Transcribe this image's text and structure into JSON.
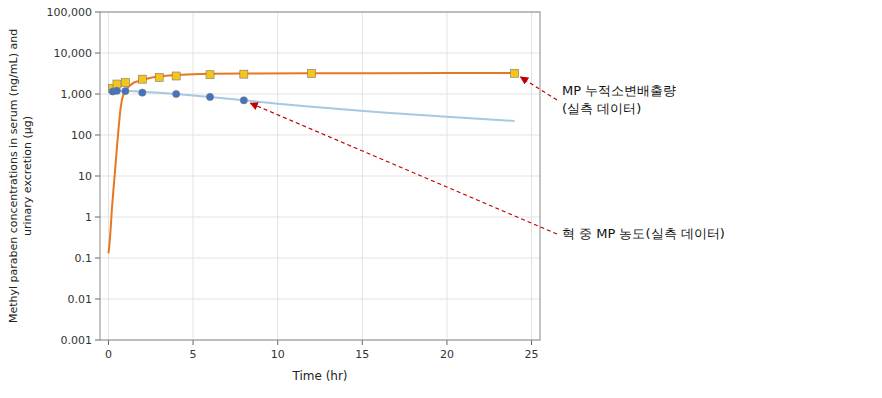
{
  "chart_data": {
    "type": "line",
    "xlabel": "Time (hr)",
    "ylabel": "Methyl paraben concentrations in serum (ng/mL) and\nurinary excretion (μg)",
    "log": "y",
    "grid": true,
    "xlim": [
      -0.5,
      25.5
    ],
    "xticks": [
      0,
      5,
      10,
      15,
      20,
      25
    ],
    "ylim": [
      0.001,
      100000
    ],
    "yticks": [
      0.001,
      0.01,
      0.1,
      1,
      10,
      100,
      {
        "value": 1000,
        "label": "1,000"
      },
      {
        "value": 10000,
        "label": "10,000"
      },
      {
        "value": 100000,
        "label": "100,000"
      }
    ],
    "series": [
      {
        "type": "line",
        "color": "#E87722",
        "x": [
          0.0,
          0.05,
          0.1,
          0.15,
          0.2,
          0.3,
          0.4,
          0.5,
          0.6,
          0.7,
          0.8,
          0.9,
          1.0,
          1.25,
          1.5,
          2.0,
          2.5,
          3.0,
          4.0,
          5.0,
          6.0,
          8.0,
          12.0,
          16.0,
          20.0,
          24.0
        ],
        "values": [
          0.13,
          0.2,
          0.35,
          0.7,
          1.5,
          5,
          15,
          50,
          150,
          400,
          750,
          1000,
          1200,
          1600,
          1900,
          2200,
          2500,
          2700,
          2900,
          3050,
          3100,
          3150,
          3200,
          3220,
          3230,
          3240
        ]
      },
      {
        "type": "line",
        "color": "#A8C8E0",
        "x": [
          0.0,
          0.5,
          1.0,
          1.5,
          2.0,
          3.0,
          4.0,
          5.0,
          6.0,
          8.0,
          10.0,
          12.0,
          16.0,
          20.0,
          24.0
        ],
        "values": [
          1200,
          1200,
          1190,
          1170,
          1140,
          1080,
          1000,
          920,
          840,
          700,
          580,
          490,
          360,
          280,
          220
        ]
      },
      {
        "type": "scatter",
        "color": "#F5C518",
        "marker": "square",
        "x": [
          0.25,
          0.5,
          1.0,
          2.0,
          3.0,
          4.0,
          6.0,
          8.0,
          12.0,
          24.0
        ],
        "values": [
          1350,
          1750,
          1900,
          2300,
          2550,
          2750,
          2950,
          3050,
          3150,
          3200
        ],
        "error_low": [
          180,
          250,
          300,
          220,
          180,
          160,
          140,
          180,
          180,
          200
        ],
        "error_high": [
          200,
          280,
          280,
          240,
          200,
          180,
          150,
          190,
          200,
          230
        ]
      },
      {
        "type": "scatter",
        "color": "#4472C4",
        "marker": "circle",
        "x": [
          0.25,
          0.5,
          1.0,
          2.0,
          4.0,
          6.0,
          8.0
        ],
        "values": [
          1150,
          1200,
          1180,
          1080,
          1000,
          850,
          700
        ],
        "error_low": [
          90,
          90,
          70,
          90,
          70,
          65,
          55
        ],
        "error_high": [
          100,
          100,
          80,
          100,
          80,
          70,
          60
        ]
      }
    ],
    "annotations": [
      {
        "lines": [
          "MP 누적소변배출량",
          "(실측 데이터)"
        ],
        "x": 24,
        "y": 3200
      },
      {
        "lines": [
          "혁 중 MP 농도(실측 데이터)"
        ],
        "x": 8.0,
        "y": 700
      }
    ]
  }
}
